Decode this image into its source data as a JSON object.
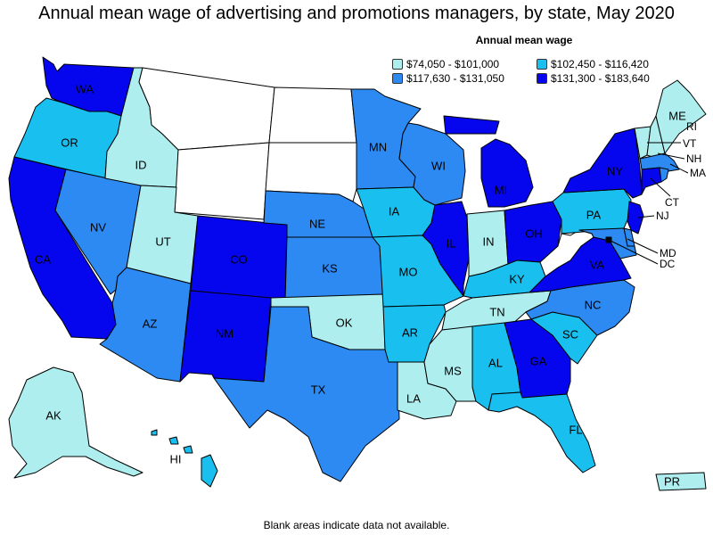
{
  "title": "Annual mean wage of advertising and promotions managers, by state, May 2020",
  "legend": {
    "title": "Annual mean wage",
    "items": [
      {
        "label": "$74,050 - $101,000",
        "color": "#aeeeee"
      },
      {
        "label": "$102,450 - $116,420",
        "color": "#18bfef"
      },
      {
        "label": "$117,630 - $131,050",
        "color": "#2c8af2"
      },
      {
        "label": "$131,300 - $183,640",
        "color": "#0606ee"
      }
    ]
  },
  "footnote": "Blank areas indicate data not available.",
  "no_data_color": "#ffffff",
  "states": {
    "WA": 3,
    "OR": 1,
    "CA": 3,
    "NV": 2,
    "ID": 0,
    "MT": -1,
    "WY": -1,
    "UT": 0,
    "AZ": 2,
    "CO": 3,
    "NM": 3,
    "ND": -1,
    "SD": -1,
    "NE": 2,
    "KS": 2,
    "OK": 0,
    "TX": 2,
    "MN": 2,
    "IA": 1,
    "MO": 1,
    "AR": 1,
    "LA": 0,
    "WI": 2,
    "IL": 3,
    "MI": 3,
    "IN": 0,
    "OH": 3,
    "KY": 1,
    "TN": 0,
    "MS": 0,
    "AL": 1,
    "GA": 3,
    "FL": 1,
    "SC": 1,
    "NC": 2,
    "VA": 3,
    "WV": -1,
    "PA": 1,
    "NY": 3,
    "VT": 0,
    "NH": 0,
    "ME": 0,
    "MA": 2,
    "CT": 3,
    "NJ": 3,
    "DE": 2,
    "MD": 2,
    "DC": 3,
    "RI": 2,
    "AK": 0,
    "HI": 1,
    "PR": 0
  },
  "labels": {
    "WA": "WA",
    "OR": "OR",
    "CA": "CA",
    "NV": "NV",
    "ID": "ID",
    "UT": "UT",
    "AZ": "AZ",
    "CO": "CO",
    "NM": "NM",
    "NE": "NE",
    "KS": "KS",
    "OK": "OK",
    "TX": "TX",
    "MN": "MN",
    "IA": "IA",
    "MO": "MO",
    "AR": "AR",
    "LA": "LA",
    "WI": "WI",
    "IL": "IL",
    "MI": "MI",
    "IN": "IN",
    "OH": "OH",
    "KY": "KY",
    "TN": "TN",
    "MS": "MS",
    "AL": "AL",
    "GA": "GA",
    "FL": "FL",
    "SC": "SC",
    "NC": "NC",
    "VA": "VA",
    "PA": "PA",
    "NY": "NY",
    "ME": "ME",
    "AK": "AK",
    "HI": "HI",
    "PR": "PR",
    "VT": "VT",
    "NH": "NH",
    "MA": "MA",
    "CT": "CT",
    "NJ": "NJ",
    "MD": "MD",
    "DC": "DC",
    "RI": "RI"
  }
}
